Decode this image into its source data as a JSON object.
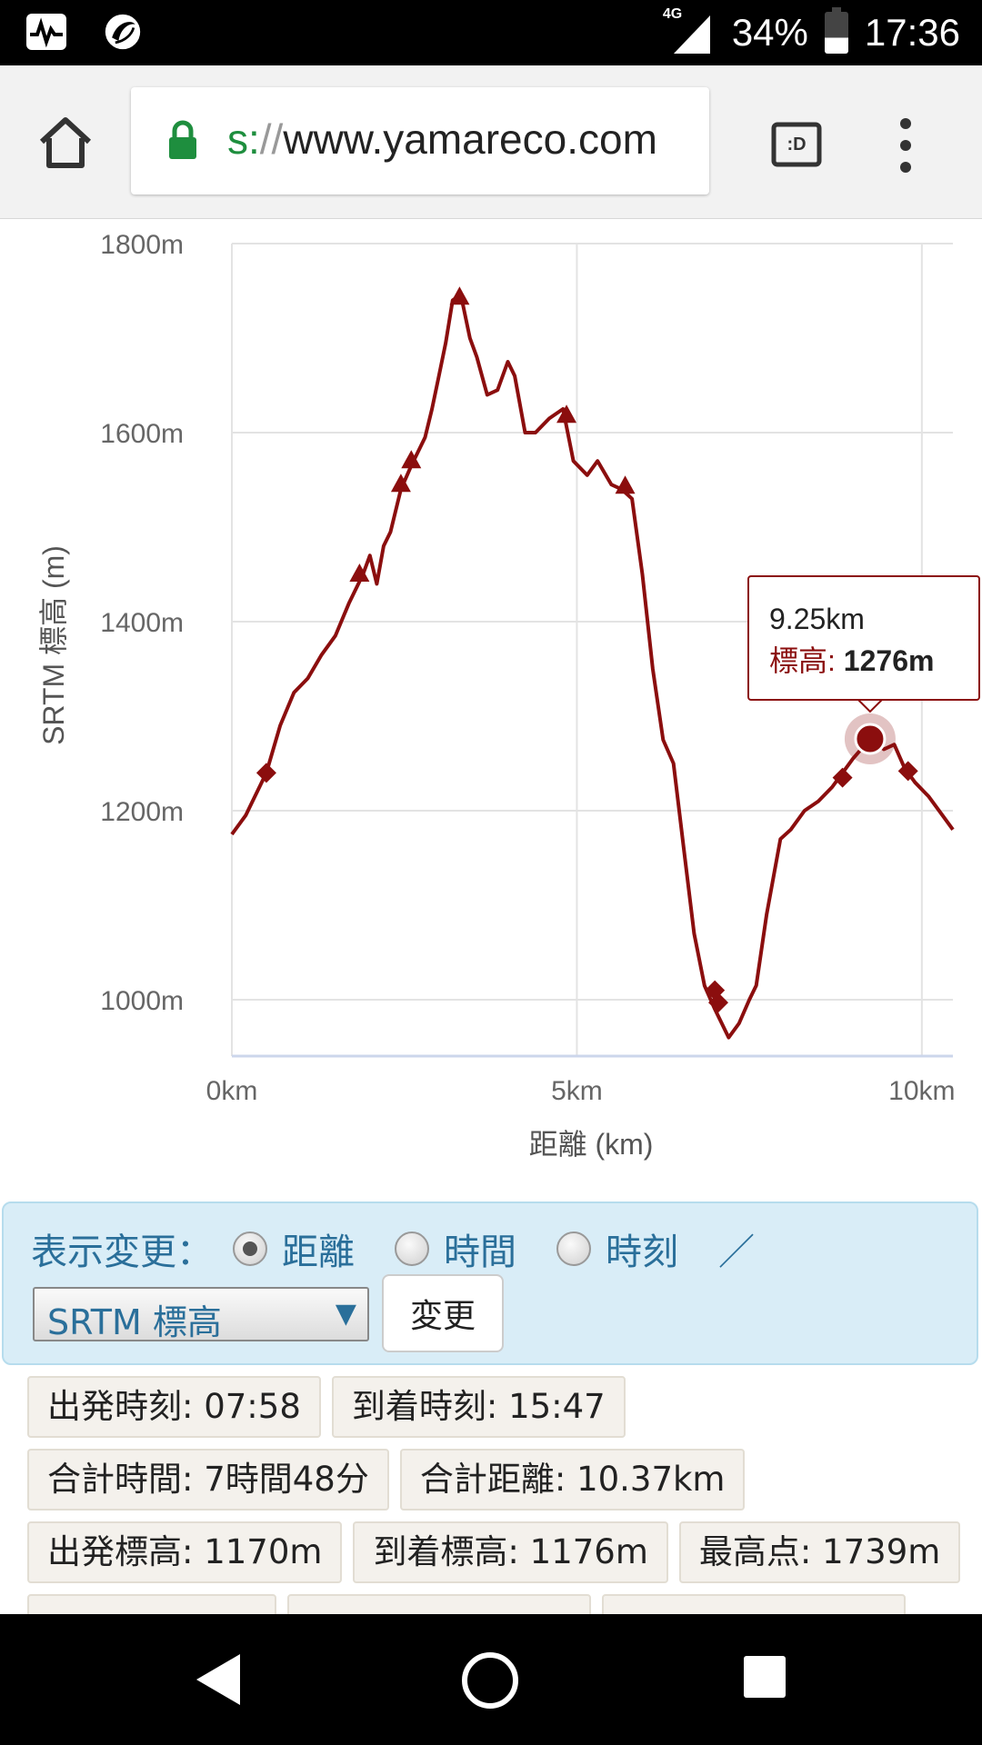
{
  "status_bar": {
    "network": "4G",
    "battery": "34%",
    "time": "17:36",
    "icons": [
      "activity-monitor-icon",
      "app-swirl-icon",
      "signal-icon",
      "battery-icon"
    ]
  },
  "browser": {
    "url_scheme": "s:",
    "url_slashes": "//",
    "url_host": "www.yamareco.com",
    "tab_switcher_label": ":D",
    "icons": [
      "home-icon",
      "lock-icon",
      "tab-switcher-icon",
      "more-vert-icon"
    ]
  },
  "chart_data": {
    "type": "line",
    "xlabel": "距離 (km)",
    "ylabel": "SRTM 標高 (m)",
    "x_ticks": [
      "0km",
      "5km",
      "10km"
    ],
    "y_ticks": [
      "1000m",
      "1200m",
      "1400m",
      "1600m",
      "1800m"
    ],
    "xlim": [
      0,
      10.45
    ],
    "ylim": [
      950,
      1800
    ],
    "color": "#8b0e0e",
    "series": [
      {
        "points": [
          [
            0,
            1175
          ],
          [
            0.2,
            1195
          ],
          [
            0.5,
            1240
          ],
          [
            0.7,
            1290
          ],
          [
            0.9,
            1325
          ],
          [
            1.1,
            1340
          ],
          [
            1.3,
            1365
          ],
          [
            1.5,
            1385
          ],
          [
            1.7,
            1420
          ],
          [
            1.9,
            1450
          ],
          [
            2.0,
            1470
          ],
          [
            2.1,
            1440
          ],
          [
            2.2,
            1480
          ],
          [
            2.3,
            1495
          ],
          [
            2.45,
            1540
          ],
          [
            2.6,
            1565
          ],
          [
            2.8,
            1595
          ],
          [
            2.9,
            1625
          ],
          [
            3.0,
            1660
          ],
          [
            3.1,
            1695
          ],
          [
            3.2,
            1740
          ],
          [
            3.3,
            1745
          ],
          [
            3.35,
            1735
          ],
          [
            3.45,
            1700
          ],
          [
            3.55,
            1680
          ],
          [
            3.7,
            1640
          ],
          [
            3.85,
            1645
          ],
          [
            4.0,
            1675
          ],
          [
            4.1,
            1660
          ],
          [
            4.25,
            1600
          ],
          [
            4.4,
            1600
          ],
          [
            4.6,
            1615
          ],
          [
            4.8,
            1625
          ],
          [
            4.95,
            1570
          ],
          [
            5.15,
            1555
          ],
          [
            5.3,
            1570
          ],
          [
            5.5,
            1545
          ],
          [
            5.65,
            1540
          ],
          [
            5.8,
            1530
          ],
          [
            5.95,
            1450
          ],
          [
            6.1,
            1350
          ],
          [
            6.25,
            1275
          ],
          [
            6.4,
            1250
          ],
          [
            6.55,
            1160
          ],
          [
            6.7,
            1070
          ],
          [
            6.85,
            1015
          ],
          [
            7.0,
            990
          ],
          [
            7.2,
            960
          ],
          [
            7.35,
            975
          ],
          [
            7.5,
            1000
          ],
          [
            7.6,
            1015
          ],
          [
            7.75,
            1090
          ],
          [
            7.95,
            1170
          ],
          [
            8.1,
            1180
          ],
          [
            8.3,
            1200
          ],
          [
            8.5,
            1210
          ],
          [
            8.7,
            1225
          ],
          [
            8.85,
            1240
          ],
          [
            9.0,
            1255
          ],
          [
            9.25,
            1276
          ],
          [
            9.45,
            1265
          ],
          [
            9.6,
            1270
          ],
          [
            9.75,
            1245
          ],
          [
            9.9,
            1230
          ],
          [
            10.1,
            1215
          ],
          [
            10.3,
            1195
          ],
          [
            10.45,
            1180
          ]
        ]
      }
    ],
    "markers": [
      {
        "shape": "diamond",
        "x": 0.5,
        "y": 1240
      },
      {
        "shape": "triangle",
        "x": 1.85,
        "y": 1450
      },
      {
        "shape": "triangle",
        "x": 2.45,
        "y": 1545
      },
      {
        "shape": "triangle",
        "x": 2.6,
        "y": 1570
      },
      {
        "shape": "triangle",
        "x": 3.3,
        "y": 1743
      },
      {
        "shape": "triangle",
        "x": 4.85,
        "y": 1618
      },
      {
        "shape": "triangle",
        "x": 5.7,
        "y": 1543
      },
      {
        "shape": "diamond",
        "x": 7.0,
        "y": 1010
      },
      {
        "shape": "diamond",
        "x": 7.05,
        "y": 997
      },
      {
        "shape": "diamond",
        "x": 8.85,
        "y": 1235
      },
      {
        "shape": "diamond",
        "x": 9.8,
        "y": 1242
      }
    ],
    "highlight": {
      "x": 9.25,
      "y": 1276
    },
    "tooltip": {
      "line1": "9.25km",
      "label": "標高: ",
      "value": "1276m"
    }
  },
  "controls": {
    "display_label": "表示変更：",
    "radio_distance": "距離",
    "radio_time": "時間",
    "radio_clock": "時刻",
    "separator": "／",
    "selected_radio": "距離",
    "select_value": "SRTM 標高",
    "change_button": "変更"
  },
  "stats": {
    "departure_time": "出発時刻: 07:58",
    "arrival_time": "到着時刻: 15:47",
    "total_time": "合計時間: 7時間48分",
    "total_distance": "合計距離: 10.37km",
    "departure_elev": "出発標高: 1170m",
    "arrival_elev": "到着標高: 1176m",
    "highest_point": "最高点: 1739m"
  },
  "nav": {
    "icons": [
      "back-icon",
      "home-circle-icon",
      "recents-icon"
    ]
  }
}
